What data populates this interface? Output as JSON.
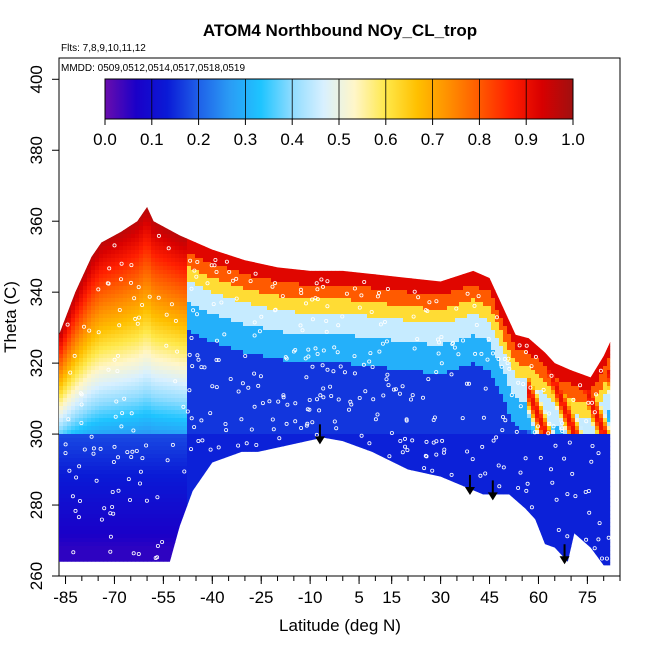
{
  "chart_data": {
    "type": "heatmap",
    "title": "ATOM4 Northbound NOy_CL_trop",
    "annotations": [
      "Flts: 7,8,9,10,11,12",
      "MMDD: 0509,0512,0514,0517,0518,0519"
    ],
    "xlabel": "Latitude (deg N)",
    "ylabel": "Theta (C)",
    "x_ticks": [
      -85,
      -70,
      -55,
      -40,
      -25,
      -10,
      5,
      15,
      30,
      45,
      60,
      75
    ],
    "y_ticks": [
      260,
      280,
      300,
      320,
      340,
      360,
      380,
      400
    ],
    "xlim": [
      -87,
      85
    ],
    "ylim": [
      260,
      406
    ],
    "colorbar": {
      "min": 0.0,
      "max": 1.0,
      "tick_labels": [
        "0.0",
        "0.1",
        "0.2",
        "0.3",
        "0.4",
        "0.5",
        "0.6",
        "0.7",
        "0.8",
        "0.9",
        "1.0"
      ],
      "colors": [
        "#6a0dad",
        "#1a00c8",
        "#0a1ad6",
        "#1f60e8",
        "#2a9cf5",
        "#1ec4ff",
        "#8fdcff",
        "#d8f0ff",
        "#fff6c8",
        "#ffe84a",
        "#ffc000",
        "#ff9000",
        "#ff5a00",
        "#ff1e00",
        "#d80000",
        "#a01010"
      ]
    },
    "arrows_x": [
      -7,
      39,
      46,
      68
    ],
    "surface": {
      "lat": [
        -87,
        -53,
        -50,
        -46,
        -40,
        -31,
        -26,
        -16,
        -11,
        -6,
        0,
        9,
        20,
        30,
        43,
        51,
        56,
        59,
        62,
        65,
        69,
        71,
        76,
        80,
        82
      ],
      "theta": [
        264,
        264,
        274,
        284,
        292,
        295,
        295,
        297,
        298,
        299,
        298,
        295,
        290,
        288,
        283,
        283,
        279,
        276,
        269,
        268,
        264,
        272,
        268,
        263,
        263
      ]
    },
    "upper_boundary": {
      "lat": [
        -87,
        -82,
        -77,
        -74,
        -68,
        -63,
        -60,
        -58,
        -50,
        -40,
        -30,
        -20,
        -10,
        0,
        10,
        20,
        30,
        40,
        45,
        49,
        53,
        57,
        62,
        65,
        70,
        76,
        80,
        82
      ],
      "theta": [
        328,
        340,
        350,
        354,
        357,
        360,
        364,
        360,
        356,
        352,
        349,
        347,
        346,
        346,
        345,
        344,
        343,
        346,
        344,
        336,
        328,
        327,
        323,
        320,
        318,
        316,
        322,
        326
      ]
    }
  }
}
